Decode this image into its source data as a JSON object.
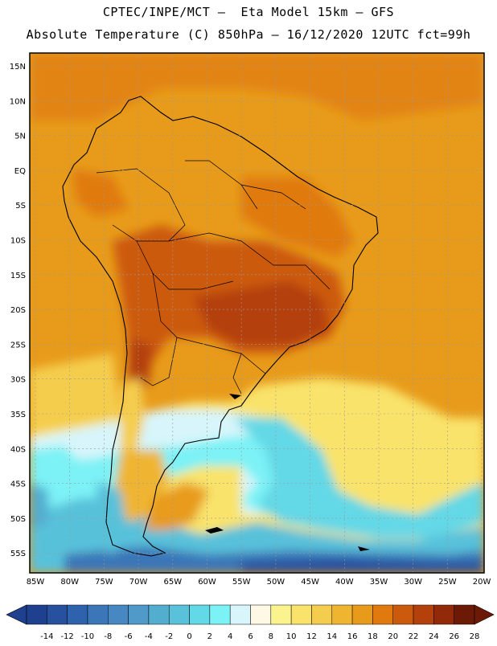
{
  "header": {
    "line1": "CPTEC/INPE/MCT –  Eta Model 15km – GFS",
    "line2": "Absolute Temperature (C) 850hPa – 16/12/2020 12UTC fct=99h"
  },
  "map": {
    "lat_labels": [
      "15N",
      "10N",
      "5N",
      "EQ",
      "5S",
      "10S",
      "15S",
      "20S",
      "25S",
      "30S",
      "35S",
      "40S",
      "45S",
      "50S",
      "55S"
    ],
    "lon_labels": [
      "85W",
      "80W",
      "75W",
      "70W",
      "65W",
      "60W",
      "55W",
      "50W",
      "45W",
      "40W",
      "35W",
      "30W",
      "25W",
      "20W"
    ]
  },
  "colorbar": {
    "labels": [
      "-14",
      "-12",
      "-10",
      "-8",
      "-6",
      "-4",
      "-2",
      "0",
      "2",
      "4",
      "6",
      "8",
      "10",
      "12",
      "14",
      "16",
      "18",
      "20",
      "22",
      "24",
      "26",
      "28"
    ],
    "colors": [
      "#1f3f8f",
      "#27509f",
      "#2f62ad",
      "#3b76b8",
      "#4788c2",
      "#4f9ac9",
      "#52adcf",
      "#59c1da",
      "#63d8e6",
      "#7bf2f6",
      "#d7f5fa",
      "#fdf9e4",
      "#fbf38e",
      "#f9e36a",
      "#f5cd4e",
      "#efb531",
      "#e89b1a",
      "#e07a0f",
      "#cc5a0c",
      "#b4400b",
      "#922a0a",
      "#6c1a06"
    ]
  },
  "colors": {
    "ocean_warm": "#e89b1a",
    "land_hot": "#b4400b",
    "cold_south": "#2f62ad",
    "coast_line": "#000000"
  }
}
